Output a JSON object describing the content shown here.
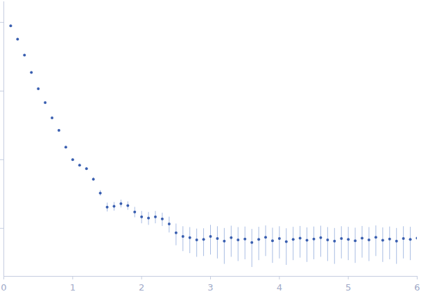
{
  "chart_data": {
    "type": "scatter",
    "log": "y",
    "color": "#3a5fb0",
    "marker": "circle",
    "tick_labels": "x",
    "grid": false,
    "xlim": [
      0,
      6
    ],
    "xticks": [
      0,
      1,
      2,
      3,
      4,
      5,
      6
    ],
    "ylim": [
      0.0002,
      2
    ],
    "yticks": [
      0.001,
      0.01,
      0.1,
      1
    ],
    "x": [
      0.1,
      0.2,
      0.3,
      0.4,
      0.5,
      0.6,
      0.7,
      0.8,
      0.9,
      1.0,
      1.1,
      1.2,
      1.3,
      1.4,
      1.5,
      1.6,
      1.7,
      1.8,
      1.9,
      2.0,
      2.1,
      2.2,
      2.3,
      2.4,
      2.5,
      2.6,
      2.7,
      2.8,
      2.9,
      3.0,
      3.1,
      3.2,
      3.3,
      3.4,
      3.5,
      3.6,
      3.7,
      3.8,
      3.9,
      4.0,
      4.1,
      4.2,
      4.3,
      4.4,
      4.5,
      4.6,
      4.7,
      4.8,
      4.9,
      5.0,
      5.1,
      5.2,
      5.3,
      5.4,
      5.5,
      5.6,
      5.7,
      5.8,
      5.9,
      6.0
    ],
    "values": [
      0.89,
      0.57,
      0.333,
      0.186,
      0.108,
      0.0679,
      0.0407,
      0.0267,
      0.0152,
      0.01,
      0.0083,
      0.0074,
      0.0052,
      0.00326,
      0.00204,
      0.00209,
      0.00229,
      0.00214,
      0.00173,
      0.00147,
      0.00141,
      0.00147,
      0.00137,
      0.00116,
      0.00086,
      0.00076,
      0.00073,
      0.00068,
      0.00069,
      0.00076,
      0.00071,
      0.00065,
      0.00073,
      0.00068,
      0.0007,
      0.00062,
      0.00069,
      0.00074,
      0.00066,
      0.00071,
      0.00064,
      0.00069,
      0.00072,
      0.00067,
      0.0007,
      0.00073,
      0.00068,
      0.00065,
      0.00071,
      0.00069,
      0.00066,
      0.00072,
      0.00068,
      0.00074,
      0.00067,
      0.0007,
      0.00065,
      0.00071,
      0.00069,
      0.00072
    ],
    "errors": [
      0.027,
      0.017,
      0.01,
      0.0056,
      0.0032,
      0.002,
      0.0012,
      0.0008,
      0.0005,
      0.0003,
      0.0003,
      0.0003,
      0.0003,
      0.0003,
      0.0003,
      0.0003,
      0.0003,
      0.0003,
      0.0003,
      0.0003,
      0.0003,
      0.0003,
      0.0003,
      0.0003,
      0.0003,
      0.0003,
      0.0003,
      0.0003,
      0.0003,
      0.00035,
      0.00035,
      0.00035,
      0.00035,
      0.00035,
      0.00035,
      0.00035,
      0.00035,
      0.00035,
      0.00035,
      0.00035,
      0.00035,
      0.00035,
      0.00035,
      0.00035,
      0.00035,
      0.00035,
      0.00035,
      0.00035,
      0.00035,
      0.00035,
      0.00035,
      0.00035,
      0.00035,
      0.00035,
      0.00035,
      0.00035,
      0.00035,
      0.00035,
      0.00035,
      0.00035
    ]
  }
}
